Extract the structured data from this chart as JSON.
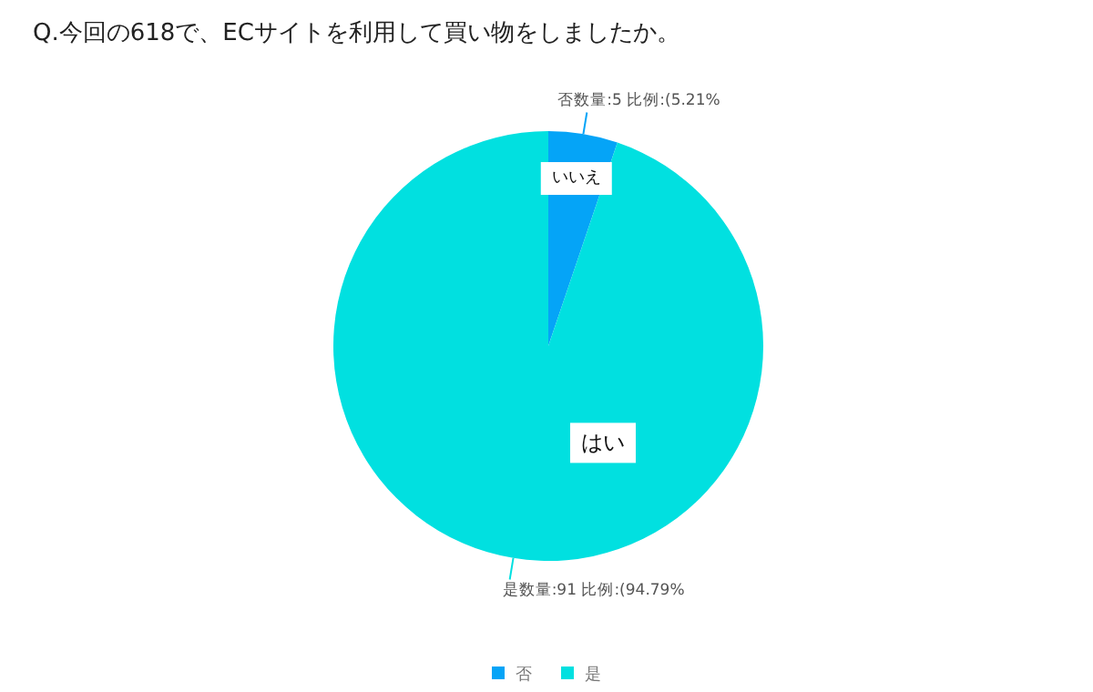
{
  "chart_data": {
    "type": "pie",
    "title": "Q.今回の618で、ECサイトを利用して買い物をしましたか。",
    "categories": [
      "否",
      "是"
    ],
    "values": [
      5,
      91
    ],
    "colors": [
      "#05a4f7",
      "#01e0e0"
    ],
    "value_labels": [
      "否数量:5 比例:(5.21%",
      "是数量:91 比例:(94.79%"
    ],
    "annotations": [
      {
        "text": "いいえ",
        "x": "否"
      },
      {
        "text": "はい",
        "x": "是"
      }
    ],
    "legend": "bottom"
  }
}
